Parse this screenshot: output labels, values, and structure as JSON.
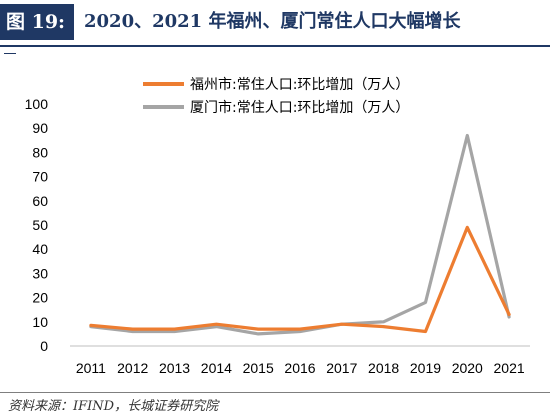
{
  "figure": {
    "label": "图 19:",
    "title": "2020、2021 年福州、厦门常住人口大幅增长",
    "source": "资料来源：IFIND，长城证券研究院"
  },
  "colors": {
    "header_bg": "#1f3864",
    "series_fuzhou": "#ed7d31",
    "series_xiamen": "#a5a5a5"
  },
  "chart_data": {
    "type": "line",
    "title": "",
    "xlabel": "",
    "ylabel": "",
    "x": [
      "2011",
      "2012",
      "2013",
      "2014",
      "2015",
      "2016",
      "2017",
      "2018",
      "2019",
      "2020",
      "2021"
    ],
    "ylim": [
      0,
      100
    ],
    "yticks": [
      0,
      10,
      20,
      30,
      40,
      50,
      60,
      70,
      80,
      90,
      100
    ],
    "grid": false,
    "legend_position": "top-center",
    "series": [
      {
        "name": "福州市:常住人口:环比增加（万人）",
        "color": "#ed7d31",
        "values": [
          8.5,
          7,
          7,
          9,
          7,
          7,
          9,
          8,
          6,
          49,
          13
        ]
      },
      {
        "name": "厦门市:常住人口:环比增加（万人）",
        "color": "#a5a5a5",
        "values": [
          8,
          6,
          6,
          8,
          5,
          6,
          9,
          10,
          18,
          87,
          12
        ]
      }
    ]
  }
}
